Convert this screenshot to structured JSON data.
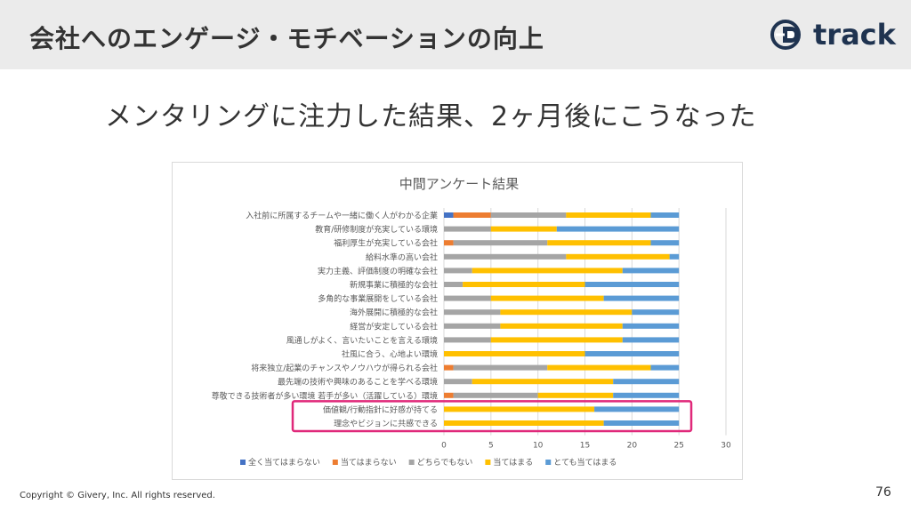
{
  "header": {
    "title": "会社へのエンゲージ・モチベーションの向上",
    "logo_text": "track"
  },
  "subtitle": "メンタリングに注力した結果、2ヶ月後にこうなった",
  "footer": {
    "copyright": "Copyright © Givery, Inc. All rights reserved.",
    "page_number": "76"
  },
  "colors": {
    "series": [
      "#4472c4",
      "#ed7d31",
      "#a5a5a5",
      "#ffc000",
      "#5b9bd5"
    ],
    "highlight": "#e0297a"
  },
  "chart_data": {
    "type": "bar",
    "orientation": "horizontal-stacked",
    "title": "中間アンケート結果",
    "categories": [
      "入社前に所属するチームや一緒に働く人がわかる企業",
      "教育/研修制度が充実している環境",
      "福利厚生が充実している会社",
      "給料水準の高い会社",
      "実力主義、評価制度の明確な会社",
      "新規事業に積極的な会社",
      "多角的な事業展開をしている会社",
      "海外展開に積極的な会社",
      "経営が安定している会社",
      "風通しがよく、言いたいことを言える環境",
      "社風に合う、心地よい環境",
      "将来独立/起業のチャンスやノウハウが得られる会社",
      "最先端の技術や興味のあることを学べる環境",
      "尊敬できる技術者が多い環境 若手が多い（活躍している）環境",
      "価値観/行動指針に好感が持てる",
      "理念やビジョンに共感できる"
    ],
    "series": [
      {
        "name": "全く当てはまらない",
        "values": [
          1,
          0,
          0,
          0,
          0,
          0,
          0,
          0,
          0,
          0,
          0,
          0,
          0,
          0,
          0,
          0
        ]
      },
      {
        "name": "当てはまらない",
        "values": [
          4,
          0,
          1,
          0,
          0,
          0,
          0,
          0,
          0,
          0,
          0,
          1,
          0,
          1,
          0,
          0
        ]
      },
      {
        "name": "どちらでもない",
        "values": [
          8,
          5,
          10,
          13,
          3,
          2,
          5,
          6,
          6,
          5,
          0,
          10,
          3,
          9,
          0,
          0
        ]
      },
      {
        "name": "当てはまる",
        "values": [
          9,
          7,
          11,
          11,
          16,
          13,
          12,
          14,
          13,
          14,
          15,
          11,
          15,
          8,
          16,
          17
        ]
      },
      {
        "name": "とても当てはまる",
        "values": [
          3,
          13,
          3,
          1,
          6,
          10,
          8,
          5,
          6,
          6,
          10,
          3,
          7,
          7,
          9,
          8
        ]
      }
    ],
    "xlim": [
      0,
      30
    ],
    "xticks": [
      "0",
      "5",
      "10",
      "15",
      "20",
      "25",
      "30"
    ],
    "grid": true,
    "legend": "bottom",
    "highlighted_categories": [
      14,
      15
    ]
  }
}
